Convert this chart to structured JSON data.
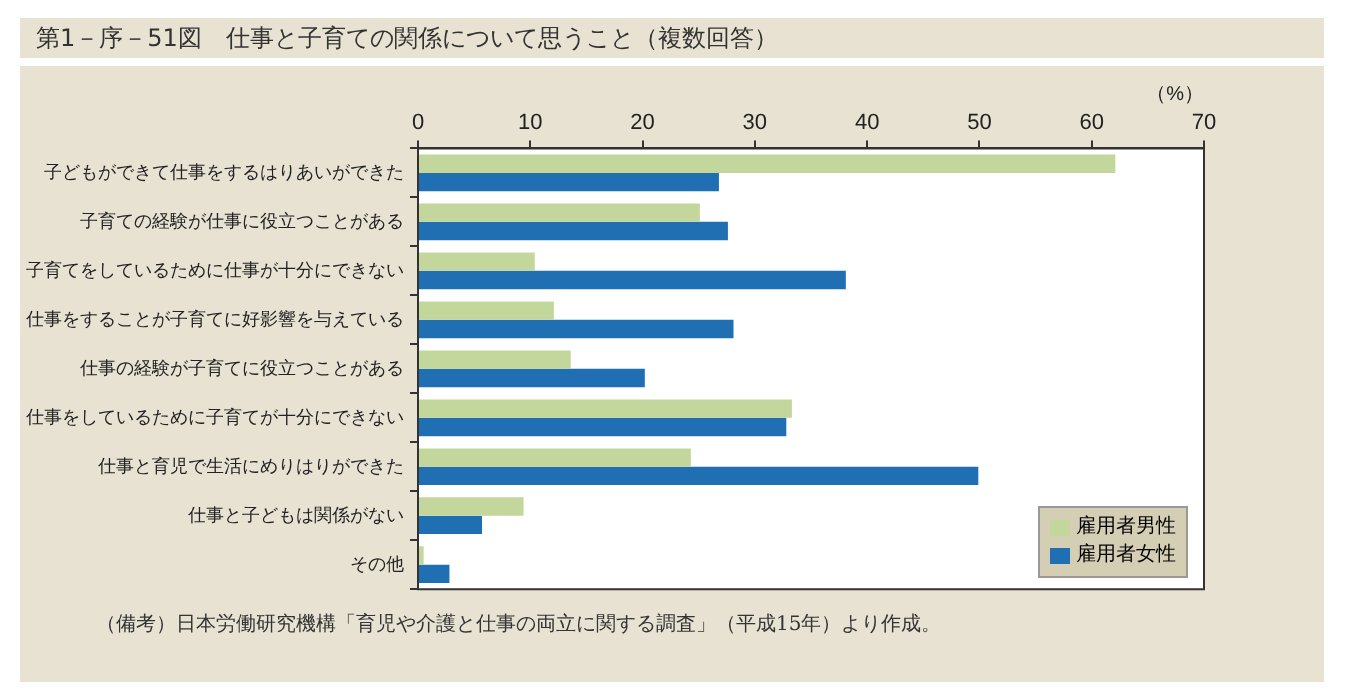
{
  "chart_data": {
    "type": "bar",
    "orientation": "horizontal",
    "title": "第1－序－51図　仕事と子育ての関係について思うこと（複数回答）",
    "xlabel": "（%）",
    "categories": [
      "子どもができて仕事をするはりあいができた",
      "子育ての経験が仕事に役立つことがある",
      "子育てをしているために仕事が十分にできない",
      "仕事をすることが子育てに好影響を与えている",
      "仕事の経験が子育てに役立つことがある",
      "仕事をしているために子育てが十分にできない",
      "仕事と育児で生活にめりはりができた",
      "仕事と子どもは関係がない",
      "その他"
    ],
    "series": [
      {
        "name": "雇用者男性",
        "color": "#c3d69b",
        "values": [
          62.1,
          25.1,
          10.4,
          12.1,
          13.6,
          33.3,
          24.3,
          9.4,
          0.5
        ]
      },
      {
        "name": "雇用者女性",
        "color": "#1f6fb2",
        "values": [
          26.8,
          27.6,
          38.1,
          28.1,
          20.2,
          32.8,
          49.9,
          5.7,
          2.8
        ]
      }
    ],
    "xlim": [
      0,
      70
    ],
    "xticks": [
      0,
      10,
      20,
      30,
      40,
      50,
      60,
      70
    ],
    "grid": false,
    "legend": "bottom right",
    "annotations": [
      "（備考）日本労働研究機構「育児や介護と仕事の両立に関する調査」（平成15年）より作成。"
    ]
  }
}
